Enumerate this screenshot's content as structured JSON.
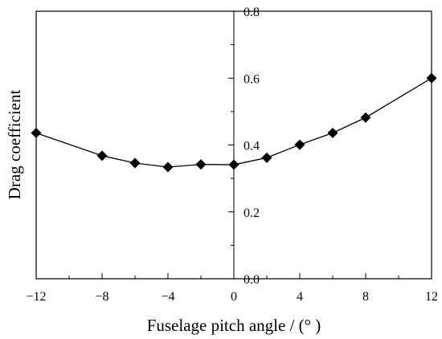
{
  "chart_data": {
    "type": "line",
    "xlabel": "Fuselage pitch angle / (°  )",
    "ylabel": "Drag coefficient",
    "xlim": [
      -12,
      12
    ],
    "ylim": [
      0.0,
      0.8
    ],
    "x_ticks": [
      -12,
      -8,
      -4,
      0,
      4,
      8,
      12
    ],
    "x_tick_labels": [
      "−12",
      "−8",
      "−4",
      "0",
      "4",
      "8",
      "12"
    ],
    "y_ticks": [
      0.0,
      0.2,
      0.4,
      0.6,
      0.8
    ],
    "y_tick_labels": [
      "0.0",
      "0.2",
      "0.4",
      "0.6",
      "0.8"
    ],
    "grid": false,
    "series": [
      {
        "marker": "diamond",
        "color": "#000000",
        "x": [
          -12,
          -8,
          -6,
          -4,
          -2,
          0,
          2,
          4,
          6,
          8,
          12
        ],
        "y": [
          0.436,
          0.368,
          0.346,
          0.334,
          0.342,
          0.341,
          0.362,
          0.401,
          0.436,
          0.482,
          0.6
        ]
      }
    ]
  }
}
